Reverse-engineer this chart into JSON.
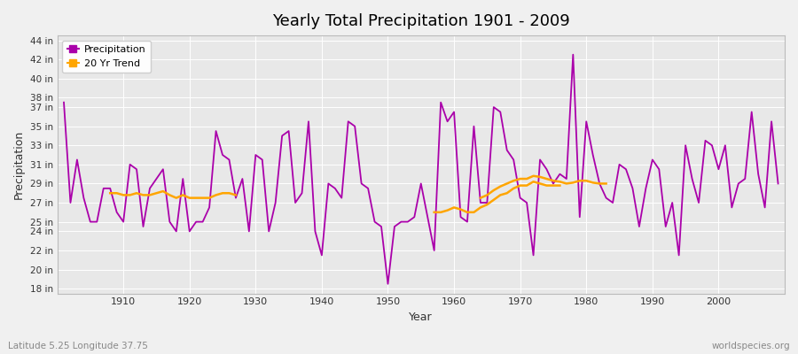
{
  "title": "Yearly Total Precipitation 1901 - 2009",
  "xlabel": "Year",
  "ylabel": "Precipitation",
  "subtitle": "Latitude 5.25 Longitude 37.75",
  "watermark": "worldspecies.org",
  "years": [
    1901,
    1902,
    1903,
    1904,
    1905,
    1906,
    1907,
    1908,
    1909,
    1910,
    1911,
    1912,
    1913,
    1914,
    1915,
    1916,
    1917,
    1918,
    1919,
    1920,
    1921,
    1922,
    1923,
    1924,
    1925,
    1926,
    1927,
    1928,
    1929,
    1930,
    1931,
    1932,
    1933,
    1934,
    1935,
    1936,
    1937,
    1938,
    1939,
    1940,
    1941,
    1942,
    1943,
    1944,
    1945,
    1946,
    1947,
    1948,
    1949,
    1950,
    1951,
    1952,
    1953,
    1954,
    1955,
    1956,
    1957,
    1958,
    1959,
    1960,
    1961,
    1962,
    1963,
    1964,
    1965,
    1966,
    1967,
    1968,
    1969,
    1970,
    1971,
    1972,
    1973,
    1974,
    1975,
    1976,
    1977,
    1978,
    1979,
    1980,
    1981,
    1982,
    1983,
    1984,
    1985,
    1986,
    1987,
    1988,
    1989,
    1990,
    1991,
    1992,
    1993,
    1994,
    1995,
    1996,
    1997,
    1998,
    1999,
    2000,
    2001,
    2002,
    2003,
    2004,
    2005,
    2006,
    2007,
    2008,
    2009
  ],
  "precip": [
    37.5,
    27.0,
    31.5,
    27.5,
    25.0,
    25.0,
    28.5,
    28.5,
    26.0,
    25.0,
    31.0,
    30.5,
    24.5,
    28.5,
    29.5,
    30.5,
    25.0,
    24.0,
    29.5,
    24.0,
    25.0,
    25.0,
    26.5,
    34.5,
    32.0,
    31.5,
    27.5,
    29.5,
    24.0,
    32.0,
    31.5,
    24.0,
    27.0,
    34.0,
    34.5,
    27.0,
    28.0,
    35.5,
    24.0,
    21.5,
    29.0,
    28.5,
    27.5,
    35.5,
    35.0,
    29.0,
    28.5,
    25.0,
    24.5,
    18.5,
    24.5,
    25.0,
    25.0,
    25.5,
    29.0,
    25.5,
    22.0,
    37.5,
    35.5,
    36.5,
    25.5,
    25.0,
    35.0,
    27.0,
    27.0,
    37.0,
    36.5,
    32.5,
    31.5,
    27.5,
    27.0,
    21.5,
    31.5,
    30.5,
    29.0,
    30.0,
    29.5,
    42.5,
    25.5,
    35.5,
    32.0,
    29.0,
    27.5,
    27.0,
    31.0,
    30.5,
    28.5,
    24.5,
    28.5,
    31.5,
    30.5,
    24.5,
    27.0,
    21.5,
    33.0,
    29.5,
    27.0,
    33.5,
    33.0,
    30.5,
    33.0,
    26.5,
    29.0,
    29.5,
    36.5,
    30.0,
    26.5,
    35.5,
    29.0
  ],
  "trend_years": [
    1908,
    1909,
    1910,
    1911,
    1912,
    1913,
    1914,
    1915,
    1916,
    1917,
    1918,
    1919,
    1920,
    1921,
    1922,
    1923,
    1924,
    1925,
    1926,
    1927
  ],
  "trend_values": [
    28.0,
    28.0,
    27.8,
    27.8,
    28.0,
    27.8,
    27.8,
    28.0,
    28.2,
    27.8,
    27.5,
    27.8,
    27.5,
    27.5,
    27.5,
    27.5,
    27.8,
    28.0,
    28.0,
    27.8
  ],
  "trend_years2": [
    1957,
    1958,
    1959,
    1960,
    1961,
    1962,
    1963,
    1964,
    1965,
    1966,
    1967,
    1968,
    1969,
    1970,
    1971,
    1972,
    1973,
    1974,
    1975,
    1976
  ],
  "trend_values2": [
    26.0,
    26.0,
    26.2,
    26.5,
    26.3,
    26.0,
    26.0,
    26.5,
    26.8,
    27.3,
    27.8,
    28.0,
    28.5,
    28.8,
    28.8,
    29.2,
    29.0,
    28.8,
    28.8,
    28.8
  ],
  "trend_years3": [
    1964,
    1965,
    1966,
    1967,
    1968,
    1969,
    1970,
    1971,
    1972,
    1973,
    1974,
    1975,
    1976,
    1977,
    1978,
    1979,
    1980,
    1981,
    1982,
    1983
  ],
  "trend_values3": [
    27.5,
    27.8,
    28.3,
    28.7,
    29.0,
    29.3,
    29.5,
    29.5,
    29.8,
    29.7,
    29.5,
    29.3,
    29.2,
    29.0,
    29.1,
    29.3,
    29.3,
    29.1,
    29.0,
    29.0
  ],
  "precip_color": "#AA00AA",
  "trend_color": "#FFA500",
  "bg_color": "#F0F0F0",
  "plot_bg_color": "#E8E8E8",
  "grid_color": "#FFFFFF",
  "ylim_min": 17.5,
  "ylim_max": 44.5,
  "ytick_vals": [
    18,
    20,
    22,
    24,
    25,
    27,
    29,
    31,
    33,
    35,
    37,
    38,
    40,
    42,
    44
  ],
  "ytick_labels": [
    "18 in",
    "20 in",
    "22 in",
    "24 in",
    "25 in",
    "27 in",
    "29 in",
    "31 in",
    "33 in",
    "35 in",
    "37 in",
    "38 in",
    "40 in",
    "42 in",
    "44 in"
  ],
  "xtick_vals": [
    1910,
    1920,
    1930,
    1940,
    1950,
    1960,
    1970,
    1980,
    1990,
    2000
  ],
  "xlim_min": 1900,
  "xlim_max": 2010
}
